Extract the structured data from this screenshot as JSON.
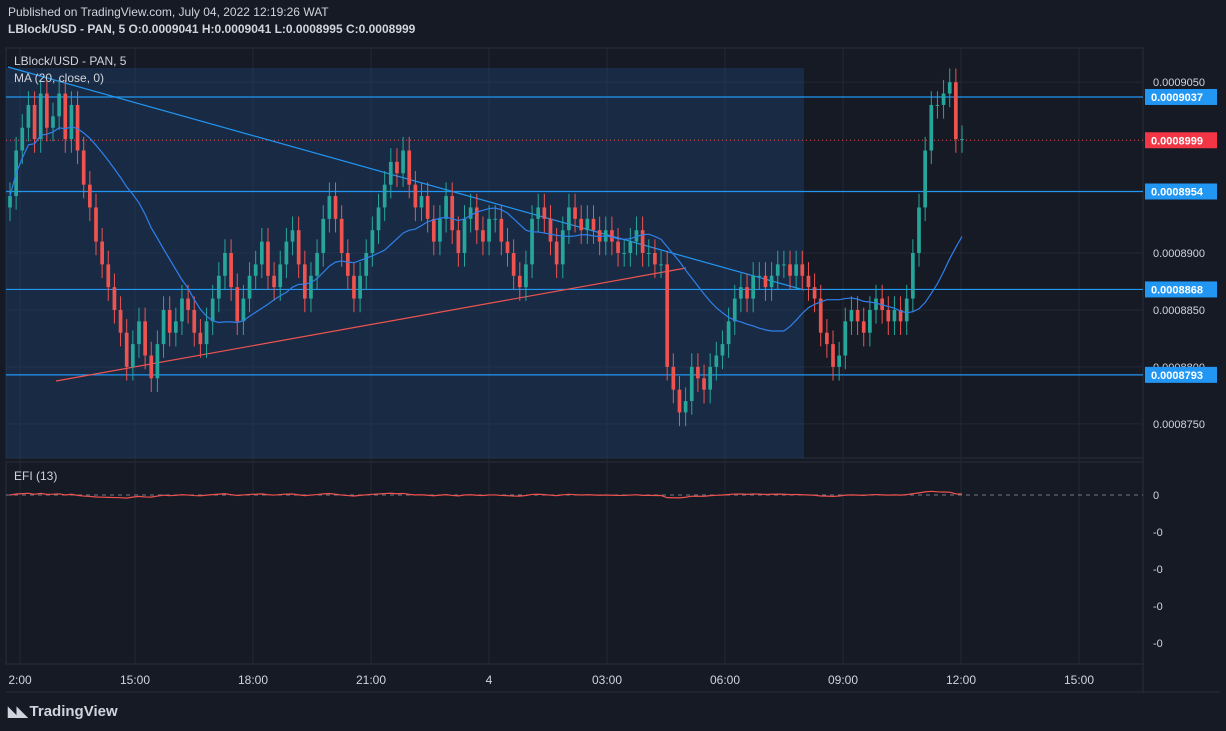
{
  "header": {
    "published": "Published on TradingView.com, July 04, 2022 12:19:26 WAT",
    "ohlc": "LBlock/USD - PAN, 5  O:0.0009041 H:0.0009041 L:0.0008995 C:0.0008999"
  },
  "footer": {
    "brand": "TradingView"
  },
  "colors": {
    "background": "#161a25",
    "grid": "#242838",
    "text": "#d1d4dc",
    "up": "#26a69a",
    "down": "#ef5350",
    "ma": "#2f80ed",
    "level": "#2196f3",
    "badge": "#2196f3",
    "price_badge": "#f23645",
    "efi": "#ef5350",
    "zone": "#1e3a5f"
  },
  "chart_data": [
    {
      "type": "candlestick",
      "legend": {
        "symbol": "LBlock/USD - PAN, 5",
        "indicator": "MA (20, close, 0)"
      },
      "x_ticks": [
        "2:00",
        "15:00",
        "18:00",
        "21:00",
        "4",
        "03:00",
        "06:00",
        "09:00",
        "12:00",
        "15:00"
      ],
      "y_ticks": [
        0.000905,
        0.00089,
        0.000885,
        0.00088,
        0.000875
      ],
      "ylim": [
        0.000872,
        0.000908
      ],
      "levels": [
        {
          "value": 0.0009037,
          "label": "0.0009037"
        },
        {
          "value": 0.0008954,
          "label": "0.0008954"
        },
        {
          "value": 0.0008868,
          "label": "0.0008868"
        },
        {
          "value": 0.0008793,
          "label": "0.0008793"
        }
      ],
      "last_price": {
        "value": 0.0008999,
        "label": "0.0008999"
      },
      "closes": [
        0.000895,
        0.000899,
        0.000901,
        0.000903,
        0.0009,
        0.000904,
        0.000901,
        0.000902,
        0.000904,
        0.0009,
        0.000903,
        0.000899,
        0.000896,
        0.000894,
        0.000891,
        0.000889,
        0.000887,
        0.000885,
        0.000883,
        0.00088,
        0.000882,
        0.000884,
        0.000881,
        0.000879,
        0.000882,
        0.000885,
        0.000883,
        0.000884,
        0.000886,
        0.000885,
        0.000883,
        0.000882,
        0.000884,
        0.000886,
        0.000888,
        0.00089,
        0.000887,
        0.000884,
        0.000886,
        0.000888,
        0.000889,
        0.000891,
        0.000888,
        0.000887,
        0.000889,
        0.000891,
        0.000892,
        0.000889,
        0.000886,
        0.000888,
        0.00089,
        0.000893,
        0.000895,
        0.000893,
        0.00089,
        0.000888,
        0.000886,
        0.000888,
        0.00089,
        0.000892,
        0.000894,
        0.000896,
        0.000898,
        0.000897,
        0.000899,
        0.000896,
        0.000894,
        0.000895,
        0.000893,
        0.000891,
        0.000893,
        0.000895,
        0.000892,
        0.00089,
        0.000893,
        0.000894,
        0.000892,
        0.000891,
        0.000893,
        0.000893,
        0.000891,
        0.00089,
        0.000888,
        0.000887,
        0.000889,
        0.000893,
        0.000894,
        0.000893,
        0.000891,
        0.000889,
        0.000892,
        0.000894,
        0.000893,
        0.000892,
        0.000893,
        0.000892,
        0.000891,
        0.000892,
        0.000891,
        0.00089,
        0.00089,
        0.000891,
        0.000892,
        0.00089,
        0.00089,
        0.000889,
        0.000889,
        0.00088,
        0.000878,
        0.000876,
        0.000877,
        0.00088,
        0.000879,
        0.000878,
        0.00088,
        0.000881,
        0.000882,
        0.000884,
        0.000886,
        0.000887,
        0.000886,
        0.000888,
        0.000888,
        0.000887,
        0.000888,
        0.000889,
        0.000889,
        0.000888,
        0.000889,
        0.000888,
        0.000887,
        0.000886,
        0.000883,
        0.000882,
        0.00088,
        0.000881,
        0.000884,
        0.000885,
        0.000884,
        0.000883,
        0.000885,
        0.000886,
        0.000885,
        0.000884,
        0.000885,
        0.000884,
        0.000886,
        0.00089,
        0.000894,
        0.000899,
        0.000903,
        0.000903,
        0.000904,
        0.000905,
        0.0009,
        0.0009
      ],
      "efi_ticks": [
        "0",
        "-0",
        "-0",
        "-0",
        "-0"
      ],
      "efi_label": "EFI (13)"
    }
  ]
}
